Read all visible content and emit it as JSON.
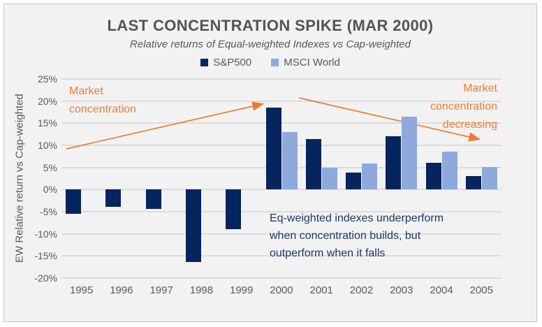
{
  "frame": {
    "background": "#f2f2f2",
    "border_color": "#c4c4c4"
  },
  "header": {
    "title": "LAST CONCENTRATION SPIKE (MAR 2000)",
    "subtitle": "Relative returns of Equal-weighted Indexes vs Cap-weighted"
  },
  "legend": [
    {
      "label": "S&P500",
      "color": "#06245E"
    },
    {
      "label": "MSCI World",
      "color": "#8EA9DB"
    }
  ],
  "y_axis": {
    "title": "EW Relative return vs Cap-weighted",
    "ticks": [
      "25%",
      "20%",
      "15%",
      "10%",
      "5%",
      "0%",
      "-5%",
      "-10%",
      "-15%",
      "-20%"
    ]
  },
  "chart_data": {
    "type": "bar",
    "categories": [
      "1995",
      "1996",
      "1997",
      "1998",
      "1999",
      "2000",
      "2001",
      "2002",
      "2003",
      "2004",
      "2005"
    ],
    "series": [
      {
        "name": "S&P500",
        "color": "#06245E",
        "values": [
          -5.4,
          -3.9,
          -4.4,
          -16.3,
          -9.0,
          18.6,
          11.4,
          3.9,
          12.1,
          6.0,
          3.0
        ]
      },
      {
        "name": "MSCI World",
        "color": "#8EA9DB",
        "values": [
          null,
          null,
          null,
          null,
          null,
          13.0,
          5.0,
          5.9,
          16.4,
          8.6,
          5.1
        ]
      }
    ],
    "title": "LAST CONCENTRATION SPIKE (MAR 2000)",
    "xlabel": "",
    "ylabel": "EW Relative return vs Cap-weighted",
    "ylim": [
      -20,
      25
    ],
    "ytick_step": 5,
    "grid": true,
    "legend_position": "top"
  },
  "annotations": {
    "market_concentration_left": "Market\nconcentration",
    "market_concentration_right": "Market\nconcentration\ndecreasing",
    "note": "Eq-weighted indexes underperform\nwhen concentration builds, but\noutperform when it falls",
    "orange": "#ED7D31",
    "navy": "#1F3864"
  }
}
